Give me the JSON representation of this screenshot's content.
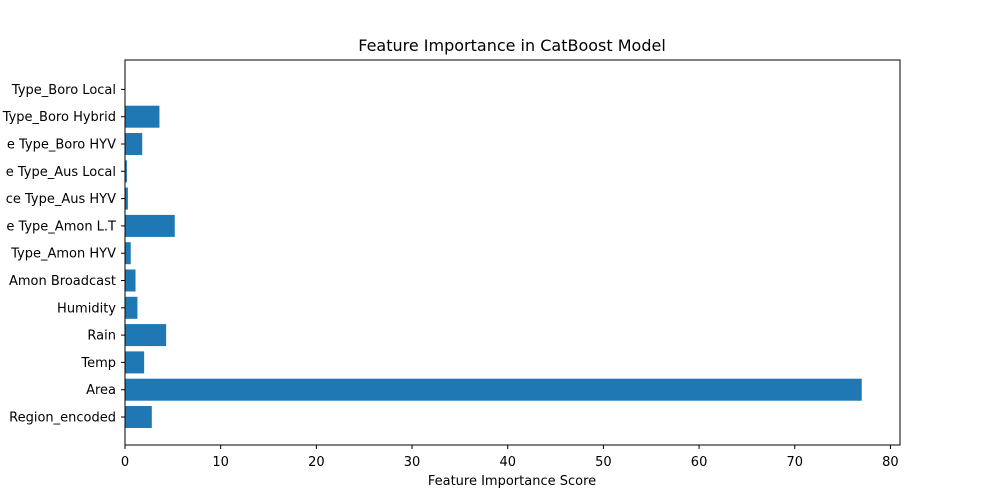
{
  "chart_data": {
    "type": "bar",
    "orientation": "horizontal",
    "title": "Feature Importance in CatBoost Model",
    "xlabel": "Feature Importance Score",
    "ylabel": "",
    "xlim": [
      0,
      81
    ],
    "xticks": [
      0,
      10,
      20,
      30,
      40,
      50,
      60,
      70,
      80
    ],
    "grid": false,
    "bar_color": "#1f77b4",
    "categories": [
      "Region_encoded",
      "Area",
      "Temp",
      "Rain",
      "Humidity",
      "Amon Broadcast",
      "Type_Amon HYV",
      "e Type_Amon L.T",
      "ce Type_Aus HYV",
      "e Type_Aus Local",
      "e Type_Boro HYV",
      "Type_Boro Hybrid",
      "Type_Boro Local"
    ],
    "values": [
      2.8,
      77.0,
      2.0,
      4.3,
      1.3,
      1.1,
      0.6,
      5.2,
      0.3,
      0.2,
      1.8,
      3.6,
      0.05
    ]
  }
}
